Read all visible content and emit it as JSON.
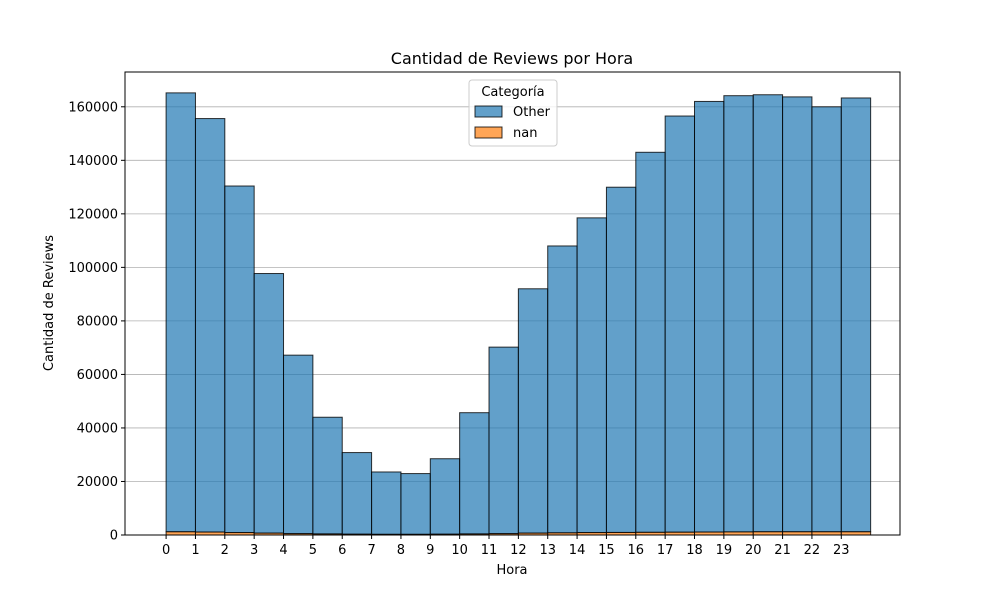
{
  "chart_data": {
    "type": "bar",
    "stacked": true,
    "title": "Cantidad de Reviews por Hora",
    "xlabel": "Hora",
    "ylabel": "Cantidad de Reviews",
    "categories": [
      0,
      1,
      2,
      3,
      4,
      5,
      6,
      7,
      8,
      9,
      10,
      11,
      12,
      13,
      14,
      15,
      16,
      17,
      18,
      19,
      20,
      21,
      22,
      23
    ],
    "xticks": [
      "0",
      "1",
      "2",
      "3",
      "4",
      "5",
      "6",
      "7",
      "8",
      "9",
      "10",
      "11",
      "12",
      "13",
      "14",
      "15",
      "16",
      "17",
      "18",
      "19",
      "20",
      "21",
      "22",
      "23"
    ],
    "ylim": [
      0,
      173000
    ],
    "yticks": [
      0,
      20000,
      40000,
      60000,
      80000,
      100000,
      120000,
      140000,
      160000
    ],
    "ytick_labels": [
      "0",
      "20000",
      "40000",
      "60000",
      "80000",
      "100000",
      "120000",
      "140000",
      "160000"
    ],
    "grid": "y",
    "legend": {
      "title": "Categoría",
      "placement": "top-center"
    },
    "series": [
      {
        "name": "nan",
        "color": "#ff7f0e",
        "values": [
          1200,
          1100,
          900,
          700,
          500,
          400,
          300,
          250,
          250,
          300,
          400,
          500,
          700,
          800,
          900,
          950,
          1000,
          1050,
          1100,
          1150,
          1200,
          1200,
          1200,
          1200
        ]
      },
      {
        "name": "Other",
        "color": "#1f77b4",
        "values": [
          164000,
          154500,
          129500,
          97000,
          66700,
          43600,
          30500,
          23300,
          22700,
          28200,
          45300,
          69700,
          91300,
          107200,
          117600,
          129000,
          142000,
          155500,
          160900,
          163000,
          163300,
          162500,
          158800,
          162100
        ]
      }
    ],
    "legend_order": [
      "Other",
      "nan"
    ]
  }
}
